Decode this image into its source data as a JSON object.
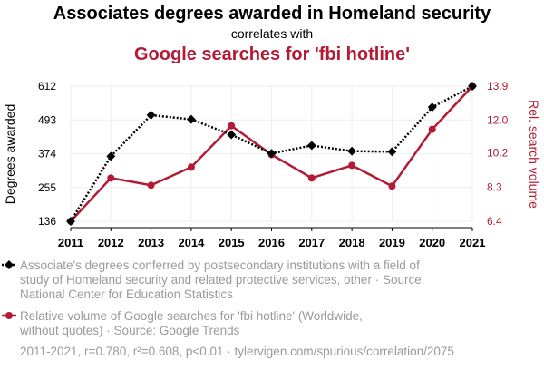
{
  "colors": {
    "series1": "#000000",
    "series2": "#b31b34",
    "grid": "#eeeeee",
    "muted_text": "#9a9a9a"
  },
  "header": {
    "title": "Associates degrees awarded in Homeland security",
    "connector": "correlates with",
    "subtitle": "Google searches for 'fbi hotline'"
  },
  "chart_data": {
    "type": "line",
    "x": [
      2011,
      2012,
      2013,
      2014,
      2015,
      2016,
      2017,
      2018,
      2019,
      2020,
      2021
    ],
    "x_ticks": [
      "2011",
      "2012",
      "2013",
      "2014",
      "2015",
      "2016",
      "2017",
      "2018",
      "2019",
      "2020",
      "2021"
    ],
    "grid": true,
    "y_left": {
      "label": "Degrees awarded",
      "ticks": [
        "136",
        "255",
        "374",
        "493",
        "612"
      ],
      "range": [
        136,
        612
      ]
    },
    "y_right": {
      "label": "Rel. search volume",
      "ticks": [
        "6.4",
        "8.3",
        "10.2",
        "12.0",
        "13.9"
      ],
      "range": [
        6.4,
        13.9
      ]
    },
    "series": [
      {
        "name": "Associate's degrees conferred by postsecondary institutions with a field of study of Homeland security and related protective services, other · Source: National Center for Education Statistics",
        "axis": "left",
        "style": "dotted",
        "marker": "diamond",
        "values": [
          136,
          365,
          510,
          495,
          441,
          375,
          403,
          383,
          381,
          538,
          612
        ]
      },
      {
        "name": "Relative volume of Google searches for 'fbi hotline' (Worldwide, without quotes) · Source: Google Trends",
        "axis": "right",
        "style": "solid",
        "marker": "circle",
        "values": [
          6.4,
          8.8,
          8.4,
          9.4,
          11.7,
          10.1,
          8.8,
          9.5,
          8.35,
          11.5,
          13.9
        ]
      }
    ]
  },
  "legend": {
    "item1_lines": [
      "Associate's degrees conferred by postsecondary institutions with a field of",
      "study of Homeland security and related protective services, other · Source:",
      "National Center for Education Statistics"
    ],
    "item2_lines": [
      "Relative volume of Google searches for 'fbi hotline' (Worldwide,",
      "without quotes) · Source: Google Trends"
    ]
  },
  "footer": {
    "text": "2011-2021, r=0.780, r²=0.608, p<0.01 · tylervigen.com/spurious/correlation/2075"
  }
}
